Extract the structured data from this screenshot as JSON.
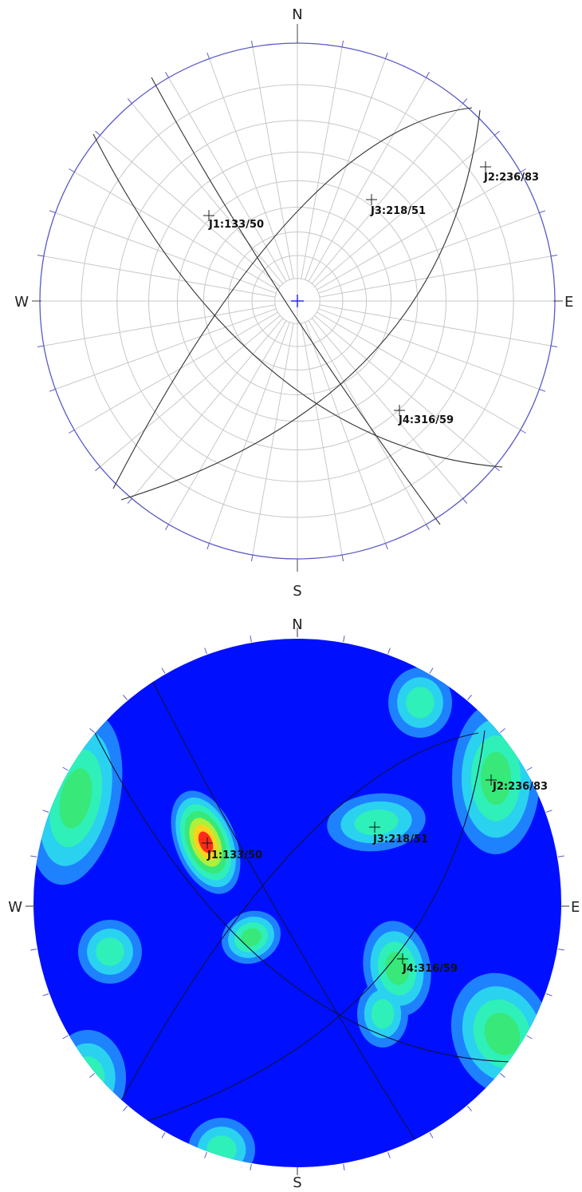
{
  "top_net": {
    "directions": {
      "n": "N",
      "e": "E",
      "s": "S",
      "w": "W"
    },
    "sets": [
      {
        "label": "J1:133/50",
        "dip": 50,
        "dip_direction": 133
      },
      {
        "label": "J2:236/83",
        "dip": 83,
        "dip_direction": 236
      },
      {
        "label": "J3:218/51",
        "dip": 51,
        "dip_direction": 218
      },
      {
        "label": "J4:316/59",
        "dip": 59,
        "dip_direction": 316
      }
    ],
    "colors": {
      "outline": "#5a5ac8",
      "grid": "#c8c8c8",
      "great_circle": "#333333",
      "center": "#1a1aff"
    }
  },
  "bottom_net": {
    "directions": {
      "n": "N",
      "e": "E",
      "s": "S",
      "w": "W"
    },
    "sets": [
      {
        "label": "J1:133/50"
      },
      {
        "label": "J2:236/83"
      },
      {
        "label": "J3:218/51"
      },
      {
        "label": "J4:316/59"
      }
    ],
    "contour_colors": [
      "#0010ff",
      "#1e82ff",
      "#2ad2f0",
      "#2ff0b8",
      "#38e878",
      "#aef03a",
      "#ffd21e",
      "#ff2a1e"
    ]
  }
}
